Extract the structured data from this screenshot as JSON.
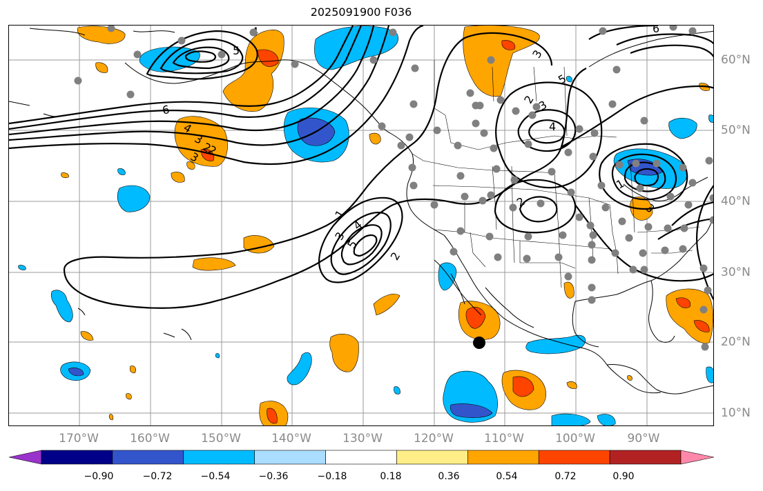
{
  "title": "2025091900 F036",
  "longitude_labels": [
    "170°W",
    "160°W",
    "150°W",
    "140°W",
    "130°W",
    "120°W",
    "110°W",
    "100°W",
    "90°W"
  ],
  "latitude_labels": [
    "60°N",
    "50°N",
    "40°N",
    "30°N",
    "20°N",
    "10°N"
  ],
  "colorbar": {
    "colors": [
      "#9933cc",
      "#000088",
      "#3355cc",
      "#00bbff",
      "#aaddff",
      "#ffffff",
      "#ffee88",
      "#ffa500",
      "#ff4400",
      "#b22222",
      "#ff88aa"
    ],
    "ticks": [
      "−0.90",
      "−0.72",
      "−0.54",
      "−0.36",
      "−0.18",
      "0.18",
      "0.36",
      "0.54",
      "0.72",
      "0.90"
    ],
    "extend": "both"
  },
  "contour_labels": [
    "6",
    "5",
    "4",
    "3",
    "2",
    "4",
    "3",
    "2",
    "1",
    "5",
    "4",
    "3",
    "2",
    "4",
    "3",
    "2",
    "2",
    "1",
    "3",
    "3",
    "6",
    "5"
  ],
  "marker": "black-dot",
  "colors": {
    "grid": "#999999",
    "station": "#808080",
    "contour": "#000000"
  }
}
